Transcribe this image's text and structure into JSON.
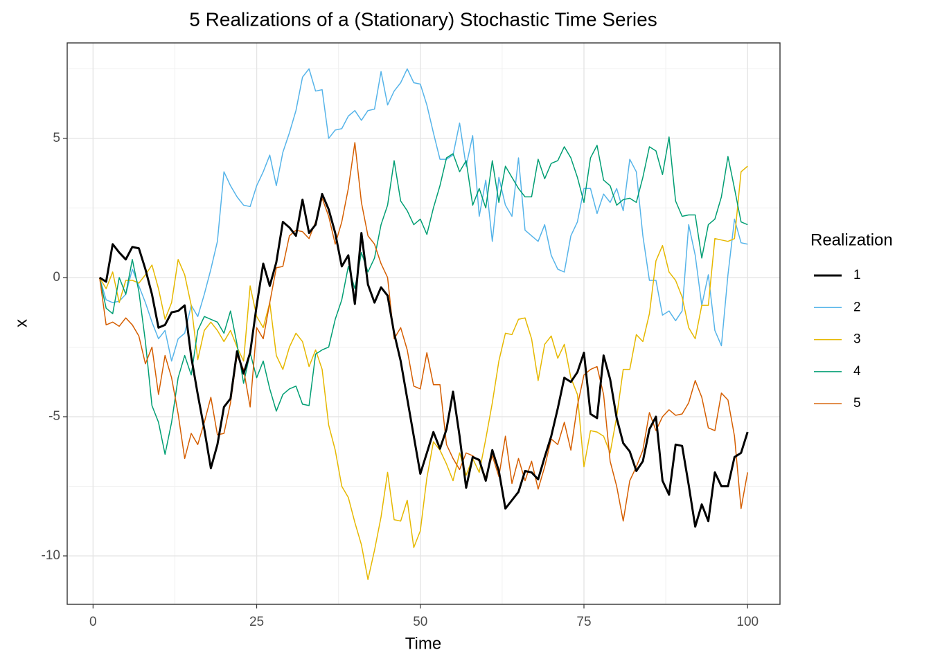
{
  "chart_data": {
    "type": "line",
    "title": "5 Realizations of a (Stationary) Stochastic Time Series",
    "x_label": "Time",
    "y_label": "x",
    "legend_title": "Realization",
    "grid": true,
    "minor_grid": true,
    "xlim": [
      -3.95,
      104.95
    ],
    "xticks": [
      0,
      25,
      50,
      75,
      100
    ],
    "ylim": [
      -11.74,
      8.43
    ],
    "yticks": [
      -10,
      -5,
      0,
      5
    ],
    "x": [
      1,
      2,
      3,
      4,
      5,
      6,
      7,
      8,
      9,
      10,
      11,
      12,
      13,
      14,
      15,
      16,
      17,
      18,
      19,
      20,
      21,
      22,
      23,
      24,
      25,
      26,
      27,
      28,
      29,
      30,
      31,
      32,
      33,
      34,
      35,
      36,
      37,
      38,
      39,
      40,
      41,
      42,
      43,
      44,
      45,
      46,
      47,
      48,
      49,
      50,
      51,
      52,
      53,
      54,
      55,
      56,
      57,
      58,
      59,
      60,
      61,
      62,
      63,
      64,
      65,
      66,
      67,
      68,
      69,
      70,
      71,
      72,
      73,
      74,
      75,
      76,
      77,
      78,
      79,
      80,
      81,
      82,
      83,
      84,
      85,
      86,
      87,
      88,
      89,
      90,
      91,
      92,
      93,
      94,
      95,
      96,
      97,
      98,
      99,
      100
    ],
    "series": [
      {
        "name": "1",
        "color": "#000000",
        "width": 3,
        "values": [
          0,
          -0.15,
          1.2,
          0.9,
          0.65,
          1.1,
          1.05,
          0.3,
          -0.6,
          -1.8,
          -1.7,
          -1.25,
          -1.2,
          -1.0,
          -2.85,
          -4.2,
          -5.45,
          -6.85,
          -6.0,
          -4.65,
          -4.35,
          -2.65,
          -3.45,
          -2.7,
          -1.0,
          0.5,
          -0.3,
          0.55,
          2.0,
          1.8,
          1.5,
          2.8,
          1.6,
          1.9,
          3.0,
          2.45,
          1.6,
          0.4,
          0.8,
          -0.95,
          1.6,
          -0.25,
          -0.9,
          -0.35,
          -0.65,
          -2.0,
          -3.0,
          -4.35,
          -5.7,
          -7.05,
          -6.3,
          -5.55,
          -6.15,
          -5.45,
          -4.1,
          -5.7,
          -7.55,
          -6.45,
          -6.55,
          -7.3,
          -6.2,
          -6.95,
          -8.3,
          -8.0,
          -7.7,
          -6.95,
          -7.0,
          -7.25,
          -6.45,
          -5.7,
          -4.7,
          -3.6,
          -3.75,
          -3.4,
          -2.7,
          -4.9,
          -5.05,
          -2.8,
          -3.65,
          -5.05,
          -5.95,
          -6.25,
          -6.95,
          -6.6,
          -5.45,
          -5.0,
          -7.3,
          -7.8,
          -6.0,
          -6.05,
          -7.45,
          -8.95,
          -8.15,
          -8.75,
          -7.0,
          -7.5,
          -7.5,
          -6.45,
          -6.3,
          -5.55
        ]
      },
      {
        "name": "2",
        "color": "#56b4e9",
        "width": 1.5,
        "values": [
          0,
          -0.8,
          -0.9,
          -0.85,
          -0.6,
          0.3,
          -0.3,
          -0.9,
          -1.6,
          -2.2,
          -1.9,
          -3.0,
          -2.2,
          -2.0,
          -1.0,
          -1.4,
          -0.6,
          0.3,
          1.3,
          3.8,
          3.3,
          2.9,
          2.6,
          2.55,
          3.3,
          3.8,
          4.4,
          3.3,
          4.5,
          5.2,
          6.0,
          7.2,
          7.5,
          6.7,
          6.75,
          5.0,
          5.3,
          5.35,
          5.8,
          6.0,
          5.65,
          6.0,
          6.05,
          7.4,
          6.2,
          6.7,
          7.0,
          7.5,
          7.0,
          6.95,
          6.2,
          5.2,
          4.25,
          4.25,
          4.4,
          5.55,
          4.0,
          5.1,
          2.2,
          3.5,
          1.3,
          3.6,
          2.6,
          2.2,
          4.3,
          1.7,
          1.5,
          1.3,
          1.9,
          0.8,
          0.3,
          0.2,
          1.5,
          2.0,
          3.2,
          3.2,
          2.3,
          3.0,
          2.7,
          3.2,
          2.4,
          4.25,
          3.8,
          1.5,
          -0.1,
          -0.1,
          -1.35,
          -1.2,
          -1.55,
          -1.2,
          1.9,
          0.8,
          -1.0,
          0.1,
          -1.9,
          -2.45,
          0.1,
          2.1,
          1.25,
          1.2
        ]
      },
      {
        "name": "3",
        "color": "#e6b800",
        "width": 1.5,
        "values": [
          0,
          -0.4,
          0.2,
          -0.9,
          -0.1,
          -0.1,
          -0.2,
          0.1,
          0.45,
          -0.4,
          -1.5,
          -0.9,
          0.65,
          0.1,
          -1.0,
          -2.95,
          -1.9,
          -1.6,
          -1.9,
          -2.3,
          -1.9,
          -2.5,
          -3.0,
          -0.3,
          -1.4,
          -1.8,
          -0.9,
          -2.8,
          -3.3,
          -2.5,
          -2.0,
          -2.3,
          -3.2,
          -2.6,
          -3.3,
          -5.3,
          -6.2,
          -7.5,
          -7.9,
          -8.8,
          -9.6,
          -10.85,
          -9.8,
          -8.6,
          -7.0,
          -8.7,
          -8.75,
          -8.0,
          -9.7,
          -9.1,
          -7.2,
          -5.9,
          -6.2,
          -6.7,
          -7.3,
          -6.3,
          -7.1,
          -6.5,
          -7.0,
          -5.8,
          -4.5,
          -3.0,
          -2.0,
          -2.05,
          -1.5,
          -1.45,
          -2.2,
          -3.7,
          -2.4,
          -2.1,
          -2.9,
          -2.4,
          -3.6,
          -4.2,
          -6.8,
          -5.5,
          -5.55,
          -5.7,
          -6.3,
          -5.0,
          -3.3,
          -3.3,
          -2.05,
          -2.3,
          -1.3,
          0.6,
          1.15,
          0.2,
          -0.1,
          -0.7,
          -1.8,
          -2.2,
          -1.0,
          -1.0,
          1.4,
          1.35,
          1.3,
          1.4,
          3.8,
          4.0
        ]
      },
      {
        "name": "4",
        "color": "#009e73",
        "width": 1.5,
        "values": [
          0,
          -1.1,
          -1.3,
          0.0,
          -0.6,
          0.65,
          -0.5,
          -2.3,
          -4.6,
          -5.2,
          -6.35,
          -5.2,
          -3.6,
          -2.8,
          -3.5,
          -1.9,
          -1.4,
          -1.5,
          -1.6,
          -2.0,
          -1.2,
          -2.4,
          -3.8,
          -2.7,
          -3.6,
          -3.0,
          -4.0,
          -4.8,
          -4.2,
          -4.0,
          -3.9,
          -4.55,
          -4.6,
          -2.75,
          -2.6,
          -2.5,
          -1.5,
          -0.8,
          0.4,
          -0.4,
          0.9,
          0.2,
          0.7,
          1.9,
          2.6,
          4.2,
          2.75,
          2.4,
          1.9,
          2.1,
          1.55,
          2.5,
          3.3,
          4.3,
          4.45,
          3.8,
          4.2,
          2.6,
          3.2,
          2.5,
          4.2,
          2.7,
          4.0,
          3.6,
          3.2,
          2.9,
          2.9,
          4.25,
          3.55,
          4.1,
          4.2,
          4.7,
          4.3,
          3.6,
          2.7,
          4.3,
          4.75,
          3.5,
          3.3,
          2.6,
          2.8,
          2.85,
          2.7,
          3.6,
          4.7,
          4.55,
          3.7,
          5.05,
          2.75,
          2.2,
          2.25,
          2.25,
          0.7,
          1.9,
          2.1,
          2.9,
          4.35,
          3.2,
          2.0,
          1.9
        ]
      },
      {
        "name": "5",
        "color": "#d55e00",
        "width": 1.5,
        "values": [
          0,
          -1.7,
          -1.6,
          -1.75,
          -1.45,
          -1.7,
          -2.1,
          -3.1,
          -2.5,
          -4.2,
          -2.8,
          -3.6,
          -4.9,
          -6.5,
          -5.6,
          -6.0,
          -5.2,
          -4.3,
          -5.65,
          -5.6,
          -4.5,
          -2.8,
          -3.3,
          -4.65,
          -1.8,
          -2.2,
          -0.9,
          0.35,
          0.4,
          1.5,
          1.7,
          1.65,
          1.4,
          2.0,
          2.85,
          2.2,
          1.2,
          2.0,
          3.2,
          4.85,
          2.7,
          1.5,
          1.2,
          0.5,
          0.0,
          -2.2,
          -1.8,
          -2.6,
          -3.9,
          -4.0,
          -2.7,
          -3.85,
          -3.85,
          -6.0,
          -6.5,
          -6.9,
          -6.3,
          -6.4,
          -6.6,
          -7.2,
          -6.4,
          -7.15,
          -5.7,
          -7.4,
          -6.5,
          -7.3,
          -6.6,
          -7.6,
          -6.8,
          -5.8,
          -6.0,
          -5.2,
          -6.2,
          -4.6,
          -3.5,
          -3.3,
          -3.2,
          -4.2,
          -6.6,
          -7.5,
          -8.75,
          -7.3,
          -6.8,
          -6.2,
          -4.85,
          -5.5,
          -5.0,
          -4.75,
          -4.95,
          -4.9,
          -4.5,
          -3.7,
          -4.3,
          -5.4,
          -5.5,
          -4.15,
          -4.4,
          -5.7,
          -8.3,
          -7.0
        ]
      }
    ]
  }
}
